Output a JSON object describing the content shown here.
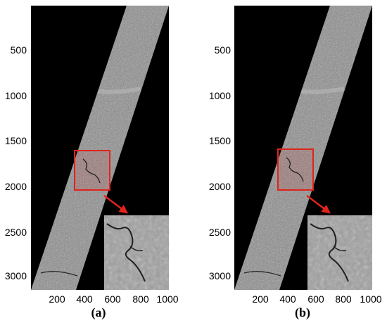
{
  "panels": [
    {
      "caption": "(a)",
      "y_ticks": [
        "500",
        "1000",
        "1500",
        "2000",
        "2500",
        "3000"
      ],
      "x_ticks": [
        "200",
        "400",
        "600",
        "800",
        "1000"
      ]
    },
    {
      "caption": "(b)",
      "y_ticks": [
        "500",
        "1000",
        "1500",
        "2000",
        "2500",
        "3000"
      ],
      "x_ticks": [
        "200",
        "400",
        "600",
        "800",
        "1000"
      ]
    }
  ],
  "colors": {
    "background": "#000000",
    "strip": "#8a8a8a",
    "highlight": "#e0241b"
  },
  "icons": {
    "arrow": "red-arrow-icon"
  }
}
